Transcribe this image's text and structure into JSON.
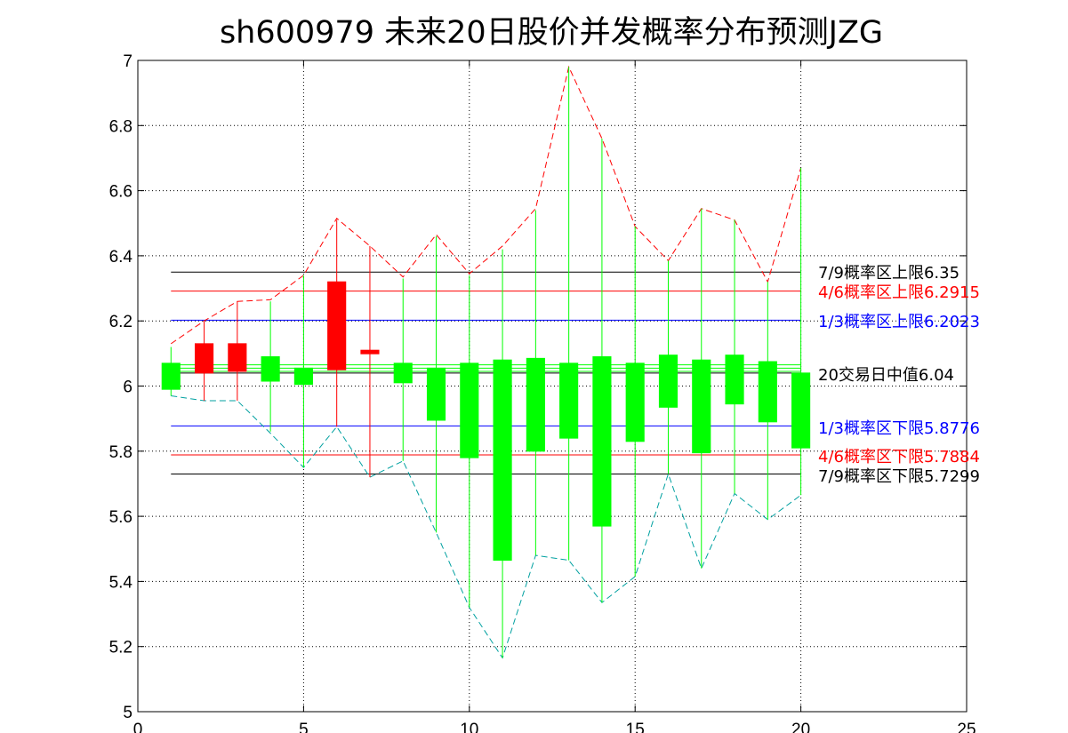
{
  "chart_data": {
    "type": "candlestick",
    "title": "sh600979  未来20日股价并发概率分布预测JZG",
    "xlabel": "",
    "ylabel": "",
    "xlim": [
      0,
      25
    ],
    "ylim": [
      5,
      7
    ],
    "x_ticks": [
      "0",
      "5",
      "10",
      "15",
      "20",
      "25"
    ],
    "y_ticks": [
      "5",
      "5.2",
      "5.4",
      "5.6",
      "5.8",
      "6",
      "6.2",
      "6.4",
      "6.6",
      "6.8",
      "7"
    ],
    "grid": true,
    "candles": [
      {
        "x": 1,
        "open": 6.07,
        "close": 5.99,
        "high": 6.12,
        "low": 5.97
      },
      {
        "x": 2,
        "open": 6.04,
        "close": 6.13,
        "high": 6.2,
        "low": 5.955
      },
      {
        "x": 3,
        "open": 6.045,
        "close": 6.13,
        "high": 6.26,
        "low": 5.955
      },
      {
        "x": 4,
        "open": 6.09,
        "close": 6.015,
        "high": 6.26,
        "low": 5.86
      },
      {
        "x": 5,
        "open": 6.055,
        "close": 6.005,
        "high": 6.34,
        "low": 5.75
      },
      {
        "x": 6,
        "open": 6.05,
        "close": 6.32,
        "high": 6.51,
        "low": 5.875
      },
      {
        "x": 7,
        "open": 6.1,
        "close": 6.11,
        "high": 6.43,
        "low": 5.72
      },
      {
        "x": 8,
        "open": 6.07,
        "close": 6.01,
        "high": 6.33,
        "low": 5.77
      },
      {
        "x": 9,
        "open": 6.055,
        "close": 5.895,
        "high": 6.46,
        "low": 5.55
      },
      {
        "x": 10,
        "open": 6.07,
        "close": 5.78,
        "high": 6.34,
        "low": 5.32
      },
      {
        "x": 11,
        "open": 6.08,
        "close": 5.465,
        "high": 6.42,
        "low": 5.165
      },
      {
        "x": 12,
        "open": 6.085,
        "close": 5.8,
        "high": 6.54,
        "low": 5.48
      },
      {
        "x": 13,
        "open": 6.07,
        "close": 5.84,
        "high": 6.98,
        "low": 5.465
      },
      {
        "x": 14,
        "open": 6.09,
        "close": 5.57,
        "high": 6.76,
        "low": 5.335
      },
      {
        "x": 15,
        "open": 6.07,
        "close": 5.83,
        "high": 6.49,
        "low": 5.415
      },
      {
        "x": 16,
        "open": 6.095,
        "close": 5.935,
        "high": 6.385,
        "low": 5.73
      },
      {
        "x": 17,
        "open": 6.08,
        "close": 5.795,
        "high": 6.545,
        "low": 5.44
      },
      {
        "x": 18,
        "open": 6.095,
        "close": 5.945,
        "high": 6.51,
        "low": 5.67
      },
      {
        "x": 19,
        "open": 6.075,
        "close": 5.89,
        "high": 6.32,
        "low": 5.59
      },
      {
        "x": 20,
        "open": 6.04,
        "close": 5.81,
        "high": 6.67,
        "low": 5.665
      }
    ],
    "upper_envelope": [
      6.13,
      6.2,
      6.26,
      6.265,
      6.34,
      6.515,
      6.43,
      6.335,
      6.465,
      6.345,
      6.43,
      6.545,
      6.98,
      6.76,
      6.49,
      6.385,
      6.545,
      6.51,
      6.32,
      6.67
    ],
    "lower_envelope": [
      5.97,
      5.955,
      5.955,
      5.855,
      5.75,
      5.875,
      5.72,
      5.77,
      5.55,
      5.32,
      5.165,
      5.48,
      5.465,
      5.335,
      5.415,
      5.73,
      5.44,
      5.67,
      5.59,
      5.665
    ],
    "levels": [
      {
        "label": "7/9概率区上限6.35",
        "value": 6.35,
        "color": "#000000",
        "x0": 1,
        "x1": 20
      },
      {
        "label": "4/6概率区上限6.2915",
        "value": 6.2915,
        "color": "#ff0000",
        "x0": 1,
        "x1": 20
      },
      {
        "label": "1/3概率区上限6.2023",
        "value": 6.2023,
        "color": "#0000ff",
        "x0": 1,
        "x1": 20
      },
      {
        "label": "20交易日中值6.04",
        "value": 6.04,
        "color": "#000000",
        "x0": 1,
        "x1": 20
      },
      {
        "label": "1/3概率区下限5.8776",
        "value": 5.8776,
        "color": "#0000ff",
        "x0": 1,
        "x1": 20
      },
      {
        "label": "4/6概率区下限5.7884",
        "value": 5.7884,
        "color": "#ff0000",
        "x0": 1,
        "x1": 20
      },
      {
        "label": "7/9概率区下限5.7299",
        "value": 5.7299,
        "color": "#000000",
        "x0": 1,
        "x1": 20
      }
    ],
    "green_ref_lines": [
      6.045,
      6.055,
      6.065
    ],
    "colors": {
      "up": "#ff0000",
      "down": "#00ff00",
      "upper_envelope": "#ff0000",
      "lower_envelope": "#00a0a0",
      "axis": "#000000",
      "grid": "#000000"
    }
  }
}
